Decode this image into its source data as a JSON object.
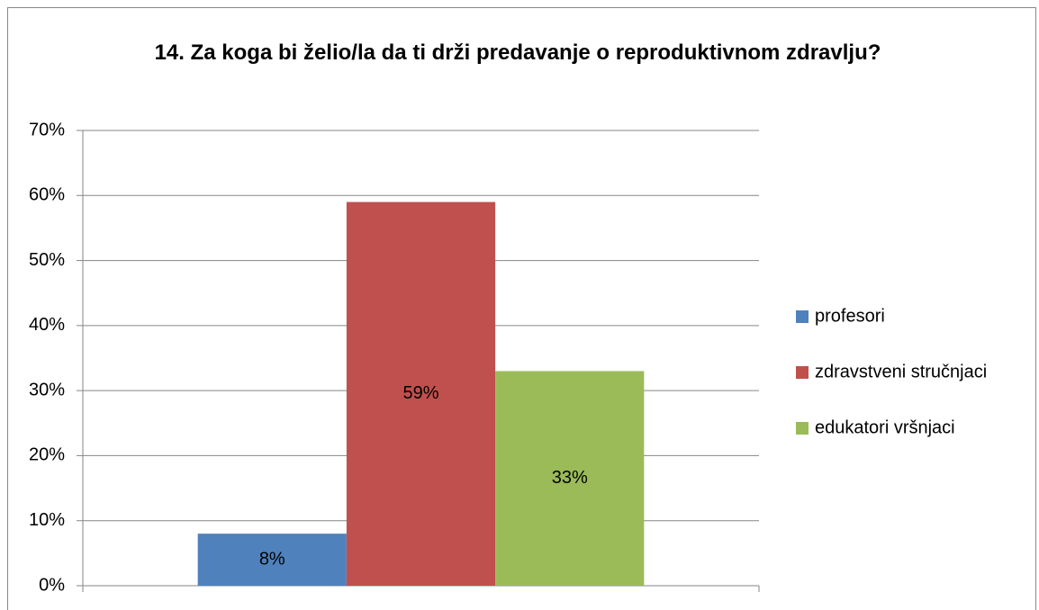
{
  "chart_data": {
    "type": "bar",
    "title": "14. Za koga bi želio/la da ti drži predavanje o reproduktivnom zdravlju?",
    "categories": [
      null
    ],
    "series": [
      {
        "name": "profesori",
        "color": "#4f81bd",
        "values": [
          8
        ],
        "value_labels": [
          "8%"
        ]
      },
      {
        "name": "zdravstveni stručnjaci",
        "color": "#c0504d",
        "values": [
          59
        ],
        "value_labels": [
          "59%"
        ]
      },
      {
        "name": "edukatori vršnjaci",
        "color": "#9bbb59",
        "values": [
          33
        ],
        "value_labels": [
          "33%"
        ]
      }
    ],
    "ylim": [
      0,
      70
    ],
    "yticks": [
      {
        "value": 0,
        "label": "0%"
      },
      {
        "value": 10,
        "label": "10%"
      },
      {
        "value": 20,
        "label": "20%"
      },
      {
        "value": 30,
        "label": "30%"
      },
      {
        "value": 40,
        "label": "40%"
      },
      {
        "value": 50,
        "label": "50%"
      },
      {
        "value": 60,
        "label": "60%"
      },
      {
        "value": 70,
        "label": "70%"
      }
    ],
    "grid": true,
    "legend": "right"
  }
}
